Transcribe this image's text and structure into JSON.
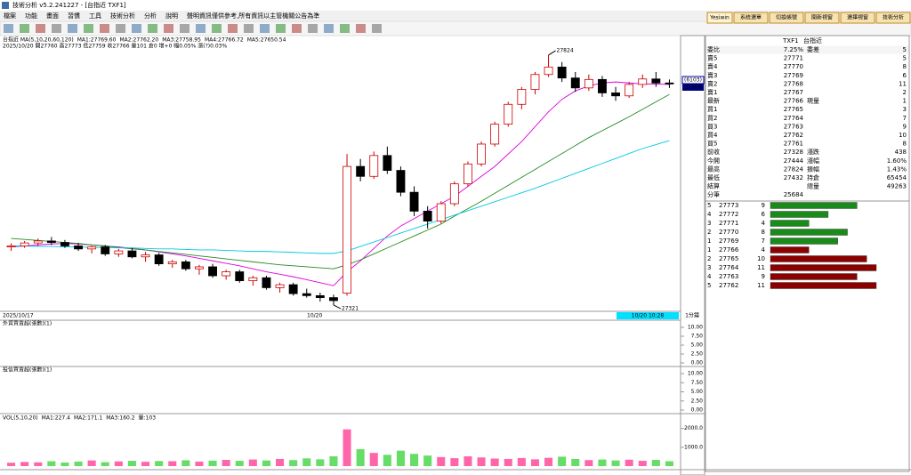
{
  "window": {
    "title": "技術分析 v5.2.241227 - [台指近 TXF1]"
  },
  "menu": [
    "檔案",
    "功能",
    "畫面",
    "習慣",
    "工具",
    "技術分析",
    "分析",
    "說明"
  ],
  "notice": "聲明資訊僅供參考,所有資訊以主管機關公告為準",
  "top_buttons": [
    "Yesiwin",
    "系統選單",
    "切換帳號",
    "開新視窗",
    "選擇視窗",
    "技術分析"
  ],
  "price_chart": {
    "label": "台指近 MA(5,10,20,60,120)",
    "ma_labels": [
      {
        "text": "MA1:27769.60",
        "color": "#333333"
      },
      {
        "text": "MA2:27762.20",
        "color": "#e000e0"
      },
      {
        "text": "MA3:27758.95",
        "color": "#888888"
      },
      {
        "text": "MA4:27766.72",
        "color": "#228b22"
      },
      {
        "text": "MA5:27650.54",
        "color": "#00bcd4"
      }
    ],
    "info_line": "2025/10/20 開27760 高27773 低27759 收27766 量101 倉0 增+0 幅0.05% 漲(?)0.03%",
    "ylim": [
      27312,
      27849
    ],
    "up_color": "#cc0000",
    "down_color": "#000000",
    "candles": [
      [
        27438,
        27445,
        27430,
        27440
      ],
      [
        27440,
        27450,
        27436,
        27446
      ],
      [
        27446,
        27455,
        27440,
        27450
      ],
      [
        27450,
        27458,
        27442,
        27447
      ],
      [
        27447,
        27452,
        27436,
        27440
      ],
      [
        27440,
        27446,
        27430,
        27434
      ],
      [
        27434,
        27440,
        27425,
        27438
      ],
      [
        27438,
        27442,
        27420,
        27424
      ],
      [
        27424,
        27434,
        27418,
        27430
      ],
      [
        27430,
        27436,
        27415,
        27418
      ],
      [
        27418,
        27428,
        27408,
        27422
      ],
      [
        27422,
        27426,
        27400,
        27404
      ],
      [
        27404,
        27412,
        27396,
        27408
      ],
      [
        27408,
        27412,
        27390,
        27394
      ],
      [
        27394,
        27402,
        27382,
        27398
      ],
      [
        27398,
        27404,
        27376,
        27380
      ],
      [
        27380,
        27392,
        27372,
        27388
      ],
      [
        27388,
        27392,
        27366,
        27370
      ],
      [
        27370,
        27380,
        27360,
        27376
      ],
      [
        27376,
        27380,
        27352,
        27356
      ],
      [
        27356,
        27366,
        27346,
        27362
      ],
      [
        27362,
        27366,
        27340,
        27344
      ],
      [
        27344,
        27354,
        27336,
        27340
      ],
      [
        27340,
        27346,
        27328,
        27336
      ],
      [
        27336,
        27342,
        27321,
        27330
      ],
      [
        27345,
        27625,
        27340,
        27600
      ],
      [
        27600,
        27615,
        27570,
        27580
      ],
      [
        27580,
        27630,
        27575,
        27622
      ],
      [
        27622,
        27640,
        27585,
        27592
      ],
      [
        27592,
        27600,
        27540,
        27548
      ],
      [
        27548,
        27560,
        27500,
        27510
      ],
      [
        27510,
        27520,
        27475,
        27490
      ],
      [
        27490,
        27530,
        27485,
        27525
      ],
      [
        27525,
        27570,
        27520,
        27565
      ],
      [
        27565,
        27610,
        27560,
        27605
      ],
      [
        27605,
        27650,
        27600,
        27645
      ],
      [
        27645,
        27690,
        27640,
        27685
      ],
      [
        27685,
        27730,
        27680,
        27725
      ],
      [
        27725,
        27760,
        27715,
        27755
      ],
      [
        27755,
        27790,
        27745,
        27785
      ],
      [
        27785,
        27824,
        27780,
        27800
      ],
      [
        27800,
        27810,
        27770,
        27778
      ],
      [
        27778,
        27790,
        27750,
        27758
      ],
      [
        27758,
        27785,
        27752,
        27775
      ],
      [
        27775,
        27782,
        27740,
        27748
      ],
      [
        27748,
        27760,
        27732,
        27742
      ],
      [
        27742,
        27770,
        27738,
        27765
      ],
      [
        27765,
        27785,
        27758,
        27776
      ],
      [
        27776,
        27790,
        27760,
        27768
      ],
      [
        27768,
        27775,
        27758,
        27766
      ]
    ],
    "ma_lines": [
      {
        "color": "#e000e0",
        "values": [
          27438,
          27440,
          27442,
          27444,
          27445,
          27444,
          27442,
          27440,
          27438,
          27435,
          27432,
          27428,
          27424,
          27420,
          27415,
          27410,
          27405,
          27400,
          27394,
          27388,
          27383,
          27378,
          27372,
          27366,
          27360,
          27388,
          27410,
          27435,
          27460,
          27480,
          27495,
          27510,
          27525,
          27540,
          27560,
          27580,
          27600,
          27625,
          27650,
          27680,
          27710,
          27735,
          27752,
          27762,
          27768,
          27770,
          27768,
          27766,
          27766,
          27765
        ]
      },
      {
        "color": "#228b22",
        "values": [
          27455,
          27453,
          27451,
          27449,
          27447,
          27445,
          27442,
          27440,
          27437,
          27434,
          27432,
          27429,
          27426,
          27423,
          27420,
          27417,
          27414,
          27411,
          27408,
          27405,
          27402,
          27400,
          27398,
          27396,
          27394,
          27402,
          27412,
          27424,
          27436,
          27448,
          27460,
          27472,
          27484,
          27500,
          27515,
          27530,
          27546,
          27562,
          27578,
          27594,
          27610,
          27626,
          27642,
          27658,
          27672,
          27686,
          27700,
          27715,
          27730,
          27745
        ]
      },
      {
        "color": "#00c8e0",
        "values": [
          27440,
          27440,
          27439,
          27439,
          27438,
          27438,
          27437,
          27437,
          27436,
          27436,
          27435,
          27434,
          27434,
          27433,
          27432,
          27432,
          27431,
          27430,
          27429,
          27429,
          27428,
          27427,
          27426,
          27425,
          27425,
          27430,
          27439,
          27448,
          27457,
          27466,
          27475,
          27484,
          27493,
          27502,
          27511,
          27520,
          27529,
          27538,
          27547,
          27556,
          27566,
          27576,
          27586,
          27596,
          27606,
          27616,
          27626,
          27636,
          27644,
          27652
        ]
      }
    ],
    "high_label": "27824",
    "low_label": "27321",
    "price_tags": [
      "(6103)",
      "27766"
    ],
    "dates": [
      "2025/10/17",
      "10/20"
    ],
    "cursor_time": "10/20 10:28",
    "period": "1分鐘"
  },
  "panels": [
    {
      "title": "外資買賣超(張數)(1)",
      "ylim": [
        0,
        10
      ],
      "yticks": [
        {
          "value": 10,
          "label": "10.00"
        },
        {
          "value": 7.5,
          "label": "7.50"
        },
        {
          "value": 5,
          "label": "5.00"
        },
        {
          "value": 2.5,
          "label": "2.50"
        },
        {
          "value": 0,
          "label": "0.00"
        }
      ]
    },
    {
      "title": "投信買賣超(張數)(1)",
      "ylim": [
        0,
        10
      ],
      "yticks": [
        {
          "value": 10,
          "label": "10.00"
        },
        {
          "value": 7.5,
          "label": "7.50"
        },
        {
          "value": 5,
          "label": "5.00"
        },
        {
          "value": 2.5,
          "label": "2.50"
        },
        {
          "value": 0,
          "label": "0.00"
        }
      ]
    }
  ],
  "volume": {
    "title": "VOL(5,10,20)",
    "ma_labels": [
      {
        "text": "MA1:227.4",
        "color": "#888888"
      },
      {
        "text": "MA2:171.1",
        "color": "#e000e0"
      },
      {
        "text": "MA3:160.2",
        "color": "#cc0000"
      },
      {
        "text": "量:103",
        "color": "#00a0c0"
      }
    ],
    "ylim": [
      0,
      2550
    ],
    "yticks": [
      {
        "value": 2000,
        "label": "2000.0"
      },
      {
        "value": 1000,
        "label": "1000.0"
      }
    ],
    "values": [
      180,
      220,
      200,
      260,
      190,
      240,
      300,
      210,
      250,
      280,
      230,
      270,
      260,
      310,
      240,
      290,
      330,
      280,
      350,
      300,
      380,
      320,
      410,
      360,
      520,
      1950,
      900,
      700,
      600,
      820,
      650,
      560,
      480,
      420,
      520,
      460,
      400,
      380,
      430,
      360,
      440,
      500,
      380,
      320,
      350,
      300,
      340,
      280,
      330,
      260
    ]
  },
  "order_book": {
    "header": [
      "TXF1",
      "台指近"
    ],
    "rows": [
      [
        "委比",
        "7.25%",
        "委差",
        "5"
      ],
      [
        "賣5",
        "27771",
        "5"
      ],
      [
        "賣4",
        "27770",
        "8"
      ],
      [
        "賣3",
        "27769",
        "6"
      ],
      [
        "賣2",
        "27768",
        "11"
      ],
      [
        "賣1",
        "27767",
        "2"
      ],
      [
        "最新",
        "27766",
        "現量",
        "1"
      ],
      [
        "買1",
        "27765",
        "3"
      ],
      [
        "買2",
        "27764",
        "7"
      ],
      [
        "買3",
        "27763",
        "9"
      ],
      [
        "買4",
        "27762",
        "10"
      ],
      [
        "買5",
        "27761",
        "8"
      ],
      [
        "前收",
        "27328",
        "漲跌",
        "438"
      ],
      [
        "今開",
        "27444",
        "漲幅",
        "1.60%"
      ],
      [
        "最高",
        "27824",
        "振幅",
        "1.43%"
      ],
      [
        "最低",
        "27432",
        "持倉",
        "65454"
      ],
      [
        "結算",
        null,
        "總量",
        "49263"
      ],
      [
        "分筆",
        "25684"
      ]
    ],
    "depth": [
      {
        "level": "5",
        "price": "27773",
        "qty": 9,
        "color": "#1a8a1a"
      },
      {
        "level": "4",
        "price": "27772",
        "qty": 6,
        "color": "#1a8a1a"
      },
      {
        "level": "3",
        "price": "27771",
        "qty": 4,
        "color": "#1a8a1a"
      },
      {
        "level": "2",
        "price": "27770",
        "qty": 8,
        "color": "#1a8a1a"
      },
      {
        "level": "1",
        "price": "27769",
        "qty": 7,
        "color": "#1a8a1a"
      },
      {
        "level": "1",
        "price": "27766",
        "qty": 4,
        "color": "#8b0000"
      },
      {
        "level": "2",
        "price": "27765",
        "qty": 10,
        "color": "#8b0000"
      },
      {
        "level": "3",
        "price": "27764",
        "qty": 11,
        "color": "#8b0000"
      },
      {
        "level": "4",
        "price": "27763",
        "qty": 9,
        "color": "#8b0000"
      },
      {
        "level": "5",
        "price": "27762",
        "qty": 11,
        "color": "#8b0000"
      }
    ],
    "depth_max": 11
  }
}
